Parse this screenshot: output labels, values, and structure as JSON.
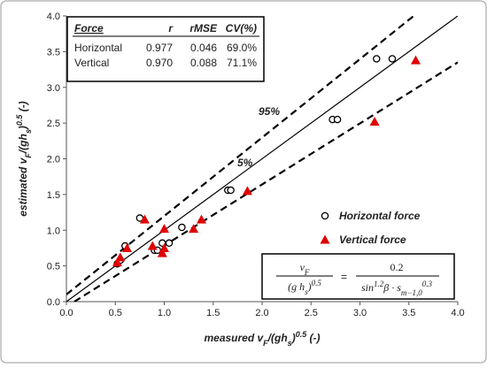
{
  "chart_data": {
    "type": "scatter",
    "x_label_parts": [
      "measured v",
      "F",
      "/(gh",
      "s",
      ")",
      "0.5",
      " (-)"
    ],
    "y_label_parts": [
      "estimated v",
      "F",
      "/(gh",
      "s",
      ")",
      "0.5",
      " (-)"
    ],
    "xlim": [
      0,
      4
    ],
    "ylim": [
      0,
      4
    ],
    "xticks": [
      {
        "value": 0,
        "label": "0.0"
      },
      {
        "value": 0.5,
        "label": "0.5"
      },
      {
        "value": 1,
        "label": "1.0"
      },
      {
        "value": 1.5,
        "label": "1.5"
      },
      {
        "value": 2,
        "label": "2.0"
      },
      {
        "value": 2.5,
        "label": "2.5"
      },
      {
        "value": 3,
        "label": "3.0"
      },
      {
        "value": 3.5,
        "label": "3.5"
      },
      {
        "value": 4,
        "label": "4.0"
      }
    ],
    "yticks": [
      {
        "value": 0,
        "label": "0.0"
      },
      {
        "value": 0.5,
        "label": "0.5"
      },
      {
        "value": 1,
        "label": "1.0"
      },
      {
        "value": 1.5,
        "label": "1.5"
      },
      {
        "value": 2,
        "label": "2.0"
      },
      {
        "value": 2.5,
        "label": "2.5"
      },
      {
        "value": 3,
        "label": "3.0"
      },
      {
        "value": 3.5,
        "label": "3.5"
      },
      {
        "value": 4,
        "label": "4.0"
      }
    ],
    "series": [
      {
        "name": "Horizontal force",
        "marker": "circle",
        "color": "#000000",
        "x": [
          0.52,
          0.55,
          0.6,
          0.75,
          0.9,
          0.93,
          0.98,
          1.05,
          1.18,
          1.65,
          1.68,
          2.72,
          2.77,
          3.17,
          3.33
        ],
        "values": [
          0.53,
          0.58,
          0.78,
          1.17,
          0.72,
          0.72,
          0.82,
          0.82,
          1.04,
          1.56,
          1.56,
          2.55,
          2.55,
          3.4,
          3.4
        ]
      },
      {
        "name": "Vertical force",
        "marker": "triangle",
        "color": "#e00000",
        "x": [
          0.52,
          0.55,
          0.62,
          0.8,
          0.88,
          0.98,
          1.0,
          1.0,
          1.3,
          1.38,
          1.85,
          3.15,
          3.57
        ],
        "values": [
          0.55,
          0.62,
          0.75,
          1.15,
          0.78,
          0.68,
          1.02,
          0.75,
          1.02,
          1.15,
          1.55,
          2.52,
          3.38
        ]
      }
    ],
    "reference_lines": [
      {
        "x": [
          0,
          4
        ],
        "values": [
          0,
          4
        ],
        "dashed": false
      },
      {
        "x": [
          0,
          3.55
        ],
        "values": [
          0.1,
          4
        ],
        "dashed": true
      },
      {
        "x": [
          0.08,
          4
        ],
        "values": [
          0,
          3.35
        ],
        "dashed": true
      }
    ],
    "annotations": [
      "95%",
      "5%"
    ],
    "stats_table": {
      "headers": [
        "Force",
        "r",
        "rMSE",
        "CV(%)"
      ],
      "rows": [
        [
          "Horizontal",
          "0.977",
          "0.046",
          "69.0%"
        ],
        [
          "Vertical",
          "0.970",
          "0.088",
          "71.1%"
        ]
      ]
    },
    "formula": {
      "lhs_num": [
        "v",
        "F"
      ],
      "lhs_den": [
        "(g h",
        "s",
        ")",
        "0.5"
      ],
      "equals": "=",
      "rhs_num": "0.2",
      "rhs_den": [
        "sin",
        "1.2",
        "β · s",
        "m−1,0",
        "0.3"
      ]
    }
  }
}
